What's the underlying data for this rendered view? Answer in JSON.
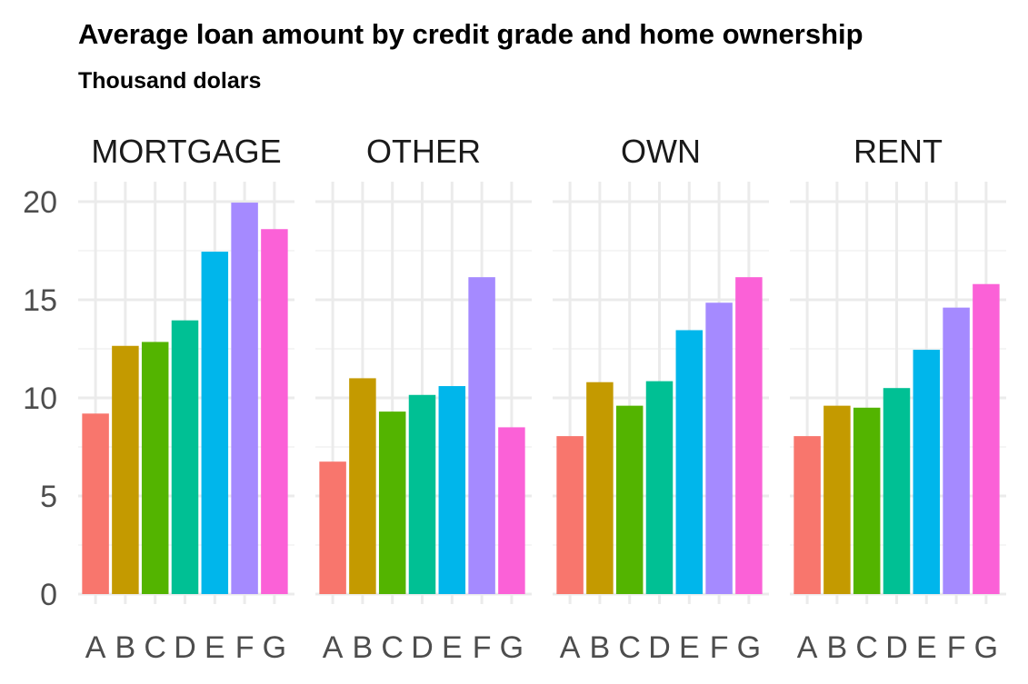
{
  "chart_data": {
    "type": "bar",
    "title": "Average loan amount by credit grade and home ownership",
    "subtitle": "Thousand dolars",
    "xlabel": "",
    "ylabel": "",
    "ylim": [
      0,
      20.5
    ],
    "yticks": [
      0,
      5,
      10,
      15,
      20
    ],
    "grid": true,
    "legend": "none",
    "categories": [
      "A",
      "B",
      "C",
      "D",
      "E",
      "F",
      "G"
    ],
    "colors": [
      "#F8766D",
      "#C49A00",
      "#53B400",
      "#00C094",
      "#00B6EB",
      "#A58AFF",
      "#FB61D7"
    ],
    "facets": [
      {
        "name": "MORTGAGE",
        "values": [
          9.2,
          12.65,
          12.85,
          13.95,
          17.45,
          19.95,
          18.6
        ]
      },
      {
        "name": "OTHER",
        "values": [
          6.75,
          11.0,
          9.3,
          10.15,
          10.6,
          16.15,
          8.5
        ]
      },
      {
        "name": "OWN",
        "values": [
          8.05,
          10.8,
          9.6,
          10.85,
          13.45,
          14.85,
          16.15
        ]
      },
      {
        "name": "RENT",
        "values": [
          8.05,
          9.6,
          9.5,
          10.5,
          12.45,
          14.6,
          15.8
        ]
      }
    ]
  }
}
